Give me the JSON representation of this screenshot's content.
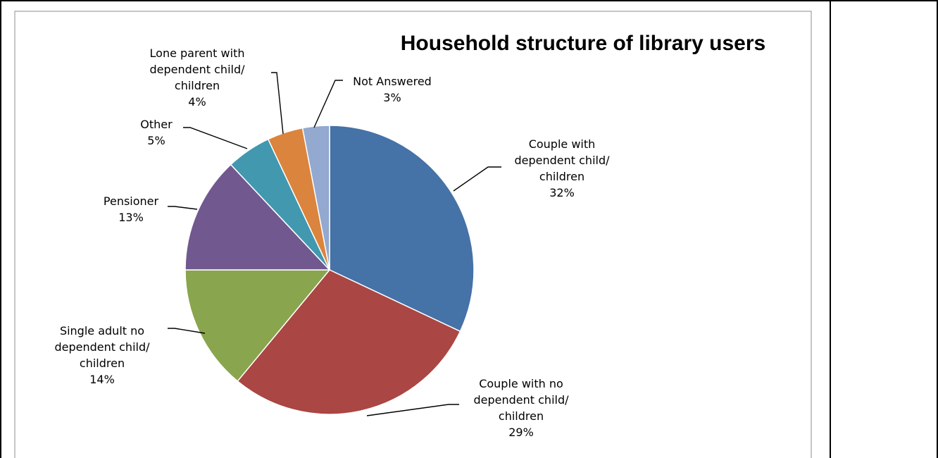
{
  "chart_data": {
    "type": "pie",
    "title": "Household structure of library users",
    "slices": [
      {
        "label_lines": [
          "Couple with",
          "dependent child/",
          "children"
        ],
        "value": 32,
        "value_label": "32%",
        "color": "#4572a7"
      },
      {
        "label_lines": [
          "Couple with no",
          "dependent child/",
          "children"
        ],
        "value": 29,
        "value_label": "29%",
        "color": "#aa4643"
      },
      {
        "label_lines": [
          "Single adult no",
          "dependent child/",
          "children"
        ],
        "value": 14,
        "value_label": "14%",
        "color": "#89a54e"
      },
      {
        "label_lines": [
          "Pensioner"
        ],
        "value": 13,
        "value_label": "13%",
        "color": "#71588f"
      },
      {
        "label_lines": [
          "Other"
        ],
        "value": 5,
        "value_label": "5%",
        "color": "#4198af"
      },
      {
        "label_lines": [
          "Lone parent with",
          "dependent child/",
          "children"
        ],
        "value": 4,
        "value_label": "4%",
        "color": "#db843d"
      },
      {
        "label_lines": [
          "Not Answered"
        ],
        "value": 3,
        "value_label": "3%",
        "color": "#93a9cf"
      }
    ],
    "legend": "none",
    "data_labels": "outside with leader lines"
  }
}
